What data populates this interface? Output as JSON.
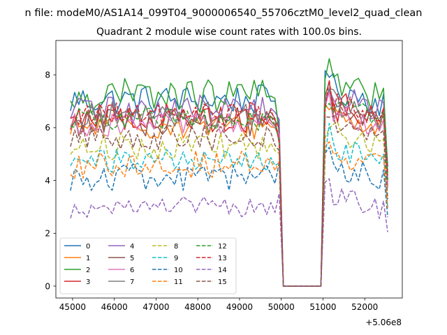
{
  "chart_data": {
    "type": "line",
    "suptitle": "n file: modeM0/AS1A14_099T04_9000006540_55706cztM0_level2_quad_clean",
    "title": "Quadrant 2 module wise count rates with 100.0s bins.",
    "xlabel": "",
    "ylabel": "",
    "x_offset_label": "+5.06e8",
    "xlim": [
      44600,
      52900
    ],
    "ylim": [
      -0.45,
      9.3
    ],
    "x_ticks": [
      45000,
      46000,
      47000,
      48000,
      49000,
      50000,
      51000,
      52000
    ],
    "x_tick_labels": [
      "45000",
      "46000",
      "47000",
      "48000",
      "49000",
      "50000",
      "51000",
      "52000"
    ],
    "y_ticks": [
      0,
      2,
      4,
      6,
      8
    ],
    "y_tick_labels": [
      "0",
      "2",
      "4",
      "6",
      "8"
    ],
    "grid": false,
    "legend_location": "lower-left",
    "legend_columns": 4,
    "gap": {
      "start": 50050,
      "end": 50950,
      "value": 0
    },
    "segment1": {
      "start": 44950,
      "end": 49950,
      "step": 100
    },
    "segment2": {
      "start": 51050,
      "end": 52550,
      "step": 100
    },
    "series": [
      {
        "name": "0",
        "color": "#1f77b4",
        "style": "solid",
        "level": 7.05,
        "amp": 0.26,
        "drop": 6.1
      },
      {
        "name": "1",
        "color": "#ff7f0e",
        "style": "solid",
        "level": 6.05,
        "amp": 0.22,
        "drop": 5.6
      },
      {
        "name": "2",
        "color": "#2ca02c",
        "style": "solid",
        "level": 7.2,
        "amp": 0.3,
        "drop": 5.9
      },
      {
        "name": "3",
        "color": "#d62728",
        "style": "solid",
        "level": 6.4,
        "amp": 0.28,
        "drop": 6.0
      },
      {
        "name": "4",
        "color": "#9467bd",
        "style": "solid",
        "level": 6.7,
        "amp": 0.25,
        "drop": 6.2
      },
      {
        "name": "5",
        "color": "#8c564b",
        "style": "solid",
        "level": 6.2,
        "amp": 0.24,
        "drop": 5.8
      },
      {
        "name": "6",
        "color": "#e377c2",
        "style": "solid",
        "level": 6.1,
        "amp": 0.2,
        "drop": 5.7
      },
      {
        "name": "7",
        "color": "#7f7f7f",
        "style": "solid",
        "level": 6.5,
        "amp": 0.22,
        "drop": 5.5
      },
      {
        "name": "8",
        "color": "#bcbd22",
        "style": "dashed",
        "level": 5.3,
        "amp": 0.24,
        "drop": 5.0
      },
      {
        "name": "9",
        "color": "#17becf",
        "style": "dashed",
        "level": 4.75,
        "amp": 0.22,
        "drop": 4.8
      },
      {
        "name": "10",
        "color": "#1f77b4",
        "style": "dashed",
        "level": 4.1,
        "amp": 0.25,
        "drop": 4.7
      },
      {
        "name": "11",
        "color": "#ff7f0e",
        "style": "dashed",
        "level": 4.6,
        "amp": 0.24,
        "drop": 4.6
      },
      {
        "name": "12",
        "color": "#2ca02c",
        "style": "dashed",
        "level": 6.3,
        "amp": 0.22,
        "drop": 5.6
      },
      {
        "name": "13",
        "color": "#d62728",
        "style": "dashed",
        "level": 6.5,
        "amp": 0.2,
        "drop": 5.4
      },
      {
        "name": "14",
        "color": "#9467bd",
        "style": "dashed",
        "level": 3.0,
        "amp": 0.18,
        "drop": 3.6
      },
      {
        "name": "15",
        "color": "#8c564b",
        "style": "dashed",
        "level": 5.6,
        "amp": 0.22,
        "drop": 5.1
      }
    ]
  }
}
